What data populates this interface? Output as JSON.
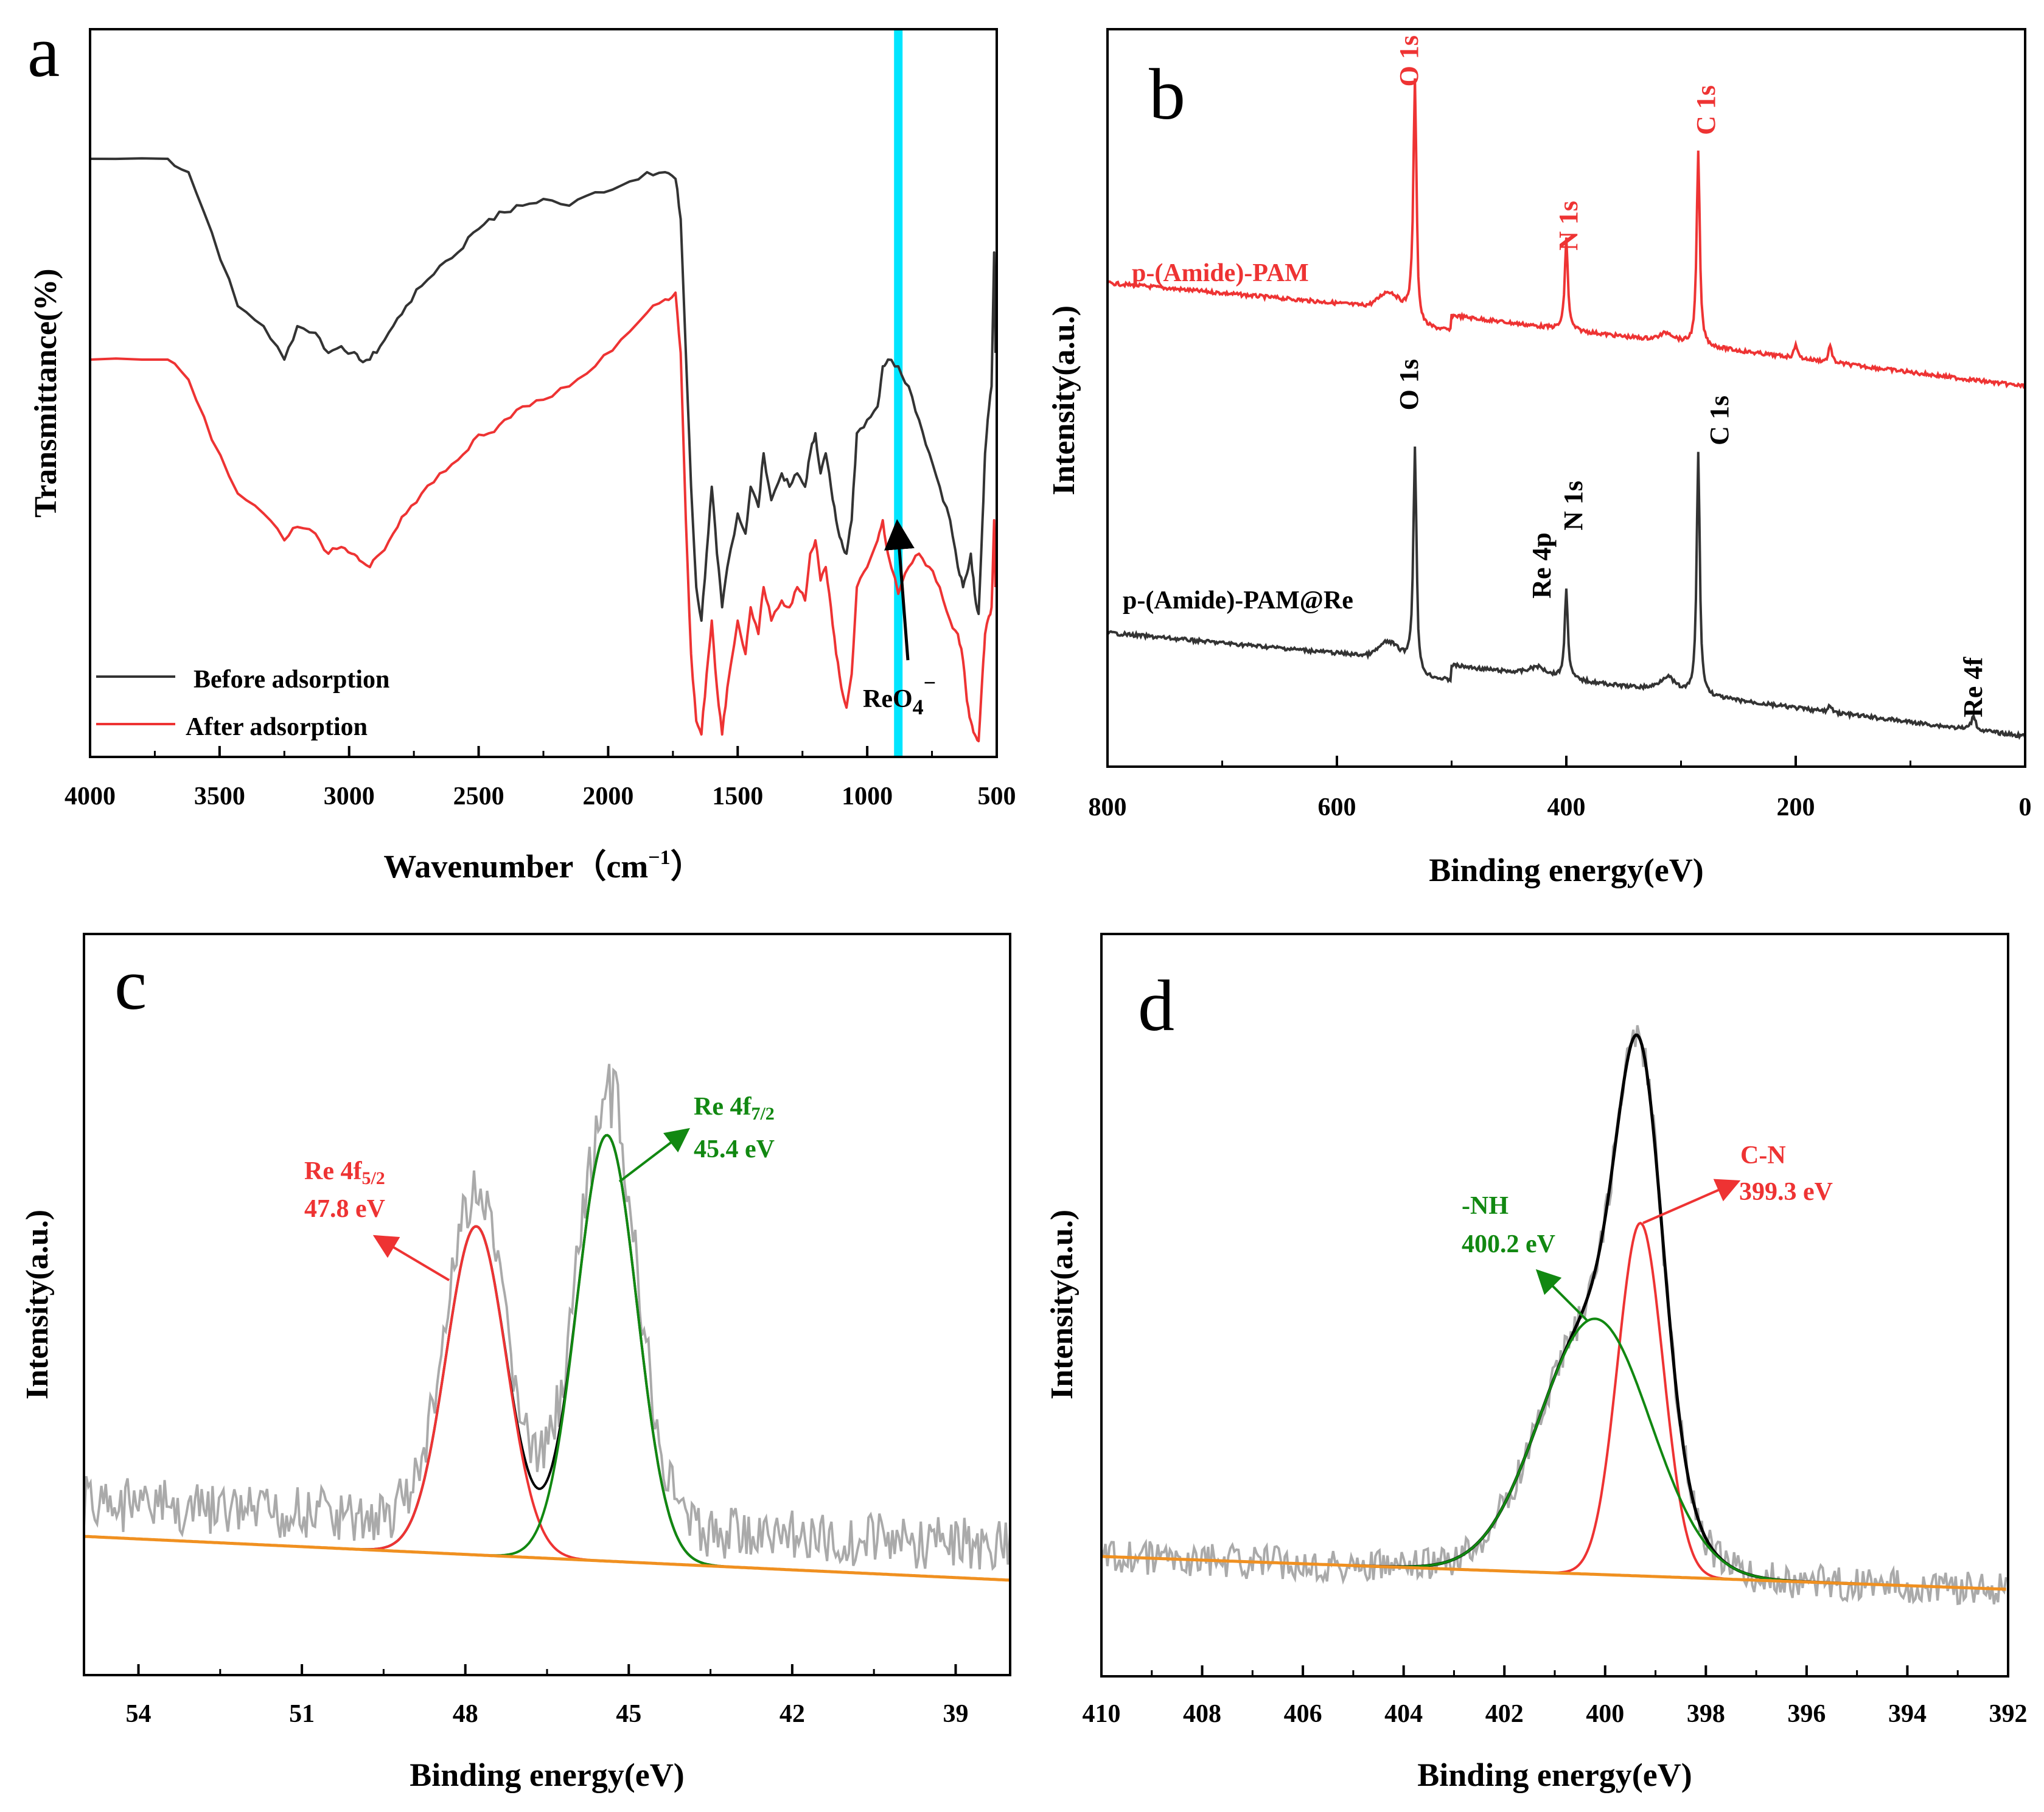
{
  "colors": {
    "black": "#333333",
    "red": "#ee3333",
    "green": "#118811",
    "gray": "#aaaaaa",
    "orange": "#f09020",
    "cyan": "#00e5ff"
  },
  "chart_data": [
    {
      "panel": "a",
      "type": "line",
      "xlabel": "Wavenumber（cm⁻¹）",
      "xlabel_main": "Wavenumber（cm",
      "xlabel_sup": "−1",
      "xlabel_end": "）",
      "ylabel": "Transmittance(%)",
      "xlim": [
        4000,
        500
      ],
      "ylim": [
        0,
        100
      ],
      "xticks": [
        4000,
        3500,
        3000,
        2500,
        2000,
        1500,
        1000,
        500
      ],
      "highlight_band": 880,
      "arrow_label": "ReO₄⁻",
      "arrow_label_main": "ReO",
      "arrow_label_sub": "4",
      "arrow_label_sup": "−",
      "legend": [
        "Before adsorption",
        "After adsorption"
      ],
      "series": [
        {
          "name": "Before adsorption",
          "color": "black",
          "x": [
            4000,
            3700,
            3620,
            3530,
            3430,
            3330,
            3250,
            3200,
            3130,
            3080,
            3030,
            2990,
            2960,
            2920,
            2880,
            2830,
            2780,
            2720,
            2650,
            2580,
            2520,
            2460,
            2400,
            2330,
            2250,
            2150,
            2050,
            1950,
            1850,
            1780,
            1740,
            1720,
            1700,
            1680,
            1660,
            1640,
            1620,
            1600,
            1580,
            1560,
            1540,
            1500,
            1470,
            1450,
            1420,
            1400,
            1370,
            1330,
            1300,
            1270,
            1240,
            1220,
            1200,
            1180,
            1160,
            1140,
            1120,
            1100,
            1080,
            1060,
            1040,
            1000,
            960,
            940,
            920,
            880,
            840,
            800,
            760,
            720,
            680,
            650,
            630,
            615,
            600,
            585,
            570,
            555,
            545,
            535,
            520,
            510,
            505
          ],
          "y": [
            89,
            89,
            87,
            78,
            67,
            64,
            59,
            64,
            63,
            60,
            61,
            60,
            59,
            59,
            61,
            64,
            67,
            70,
            73,
            75,
            78,
            80,
            81,
            82,
            83,
            82,
            84,
            85,
            87,
            87,
            86,
            80,
            60,
            40,
            25,
            20,
            30,
            40,
            30,
            22,
            28,
            36,
            33,
            40,
            37,
            45,
            38,
            42,
            40,
            42,
            40,
            45,
            48,
            42,
            45,
            40,
            35,
            32,
            30,
            35,
            48,
            50,
            52,
            58,
            59,
            58,
            55,
            50,
            45,
            40,
            35,
            28,
            25,
            27,
            30,
            24,
            21,
            35,
            45,
            50,
            55,
            75,
            60
          ]
        },
        {
          "name": "After adsorption",
          "color": "red",
          "x": [
            4000,
            3700,
            3620,
            3530,
            3430,
            3330,
            3250,
            3200,
            3130,
            3080,
            3030,
            2990,
            2960,
            2920,
            2880,
            2830,
            2780,
            2720,
            2650,
            2580,
            2520,
            2460,
            2400,
            2330,
            2250,
            2150,
            2050,
            1950,
            1850,
            1780,
            1740,
            1720,
            1700,
            1680,
            1660,
            1640,
            1620,
            1600,
            1580,
            1560,
            1540,
            1500,
            1470,
            1450,
            1420,
            1400,
            1370,
            1330,
            1300,
            1270,
            1240,
            1220,
            1200,
            1180,
            1160,
            1140,
            1120,
            1100,
            1080,
            1060,
            1040,
            1000,
            960,
            940,
            920,
            880,
            840,
            800,
            760,
            720,
            680,
            650,
            630,
            615,
            600,
            585,
            570,
            555,
            545,
            535,
            520,
            510,
            505
          ],
          "y": [
            59,
            59,
            56,
            47,
            39,
            36,
            32,
            34,
            33,
            30,
            31,
            30,
            29,
            28,
            30,
            33,
            36,
            39,
            42,
            44,
            47,
            48,
            50,
            52,
            53,
            55,
            58,
            62,
            66,
            68,
            69,
            60,
            35,
            15,
            5,
            3,
            12,
            20,
            10,
            3,
            10,
            20,
            15,
            22,
            18,
            25,
            20,
            23,
            22,
            25,
            23,
            30,
            32,
            26,
            28,
            22,
            15,
            10,
            7,
            12,
            25,
            28,
            32,
            35,
            30,
            24,
            28,
            30,
            28,
            25,
            20,
            18,
            14,
            8,
            5,
            3,
            2,
            12,
            18,
            20,
            22,
            35,
            25
          ]
        }
      ]
    },
    {
      "panel": "b",
      "type": "line",
      "xlabel": "Binding energy(eV)",
      "ylabel": "Intensity(a.u.)",
      "xlim": [
        800,
        0
      ],
      "xticks": [
        800,
        600,
        400,
        200,
        0
      ],
      "series": [
        {
          "name": "p-(Amide)-PAM",
          "color": "red",
          "peaks": [
            {
              "label": "O 1s",
              "x": 532
            },
            {
              "label": "N 1s",
              "x": 400
            },
            {
              "label": "C 1s",
              "x": 285
            }
          ]
        },
        {
          "name": "p-(Amide)-PAM@Re",
          "color": "black",
          "peaks": [
            {
              "label": "O 1s",
              "x": 532
            },
            {
              "label": "Re 4p",
              "x": 425
            },
            {
              "label": "N 1s",
              "x": 400
            },
            {
              "label": "C 1s",
              "x": 285
            },
            {
              "label": "Re 4f",
              "x": 45
            }
          ]
        }
      ]
    },
    {
      "panel": "c",
      "type": "line",
      "xlabel": "Binding energy(eV)",
      "ylabel": "Intensity(a.u.)",
      "xlim": [
        55,
        38
      ],
      "xticks": [
        54,
        51,
        48,
        45,
        42,
        39
      ],
      "fits": [
        {
          "name": "Re 4f 5/2",
          "label_main": "Re 4f",
          "label_sub": "5/2",
          "value": "47.8 eV",
          "center": 47.8,
          "color": "red"
        },
        {
          "name": "Re 4f 7/2",
          "label_main": "Re 4f",
          "label_sub": "7/2",
          "value": "45.4 eV",
          "center": 45.4,
          "color": "green"
        }
      ]
    },
    {
      "panel": "d",
      "type": "line",
      "xlabel": "Binding energy(eV)",
      "ylabel": "Intensity(a.u.)",
      "xlim": [
        410,
        392
      ],
      "xticks": [
        410,
        408,
        406,
        404,
        402,
        400,
        398,
        396,
        394,
        392
      ],
      "fits": [
        {
          "name": "C-N",
          "label_main": "C-N",
          "value": "399.3 eV",
          "center": 399.3,
          "color": "red"
        },
        {
          "name": "-NH",
          "label_main": "-NH",
          "value": "400.2 eV",
          "center": 400.2,
          "color": "green"
        }
      ]
    }
  ]
}
